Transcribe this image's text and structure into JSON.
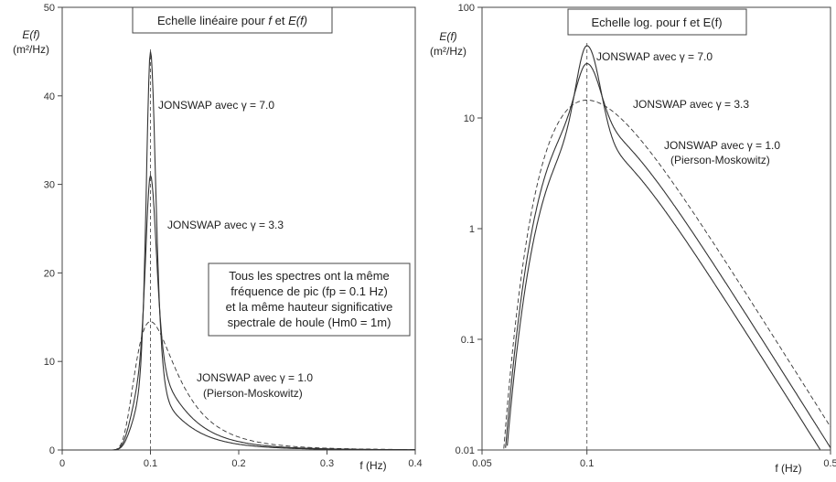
{
  "chart_data": [
    {
      "type": "line",
      "title": "Echelle linéaire pour f et E(f)",
      "title_parts": {
        "a": "Echelle linéaire pour ",
        "f": "f",
        "b": " et ",
        "E": "E(f)"
      },
      "xlabel": "f (Hz)",
      "ylabel": "E(f)",
      "ylabel_unit": "(m²/Hz)",
      "xlim": [
        0,
        0.4
      ],
      "ylim": [
        0,
        50
      ],
      "xscale": "linear",
      "yscale": "linear",
      "x_ticks": [
        "0",
        "0.1",
        "0.2",
        "0.3",
        "0.4"
      ],
      "y_ticks": [
        "0",
        "10",
        "20",
        "30",
        "40",
        "50"
      ],
      "peak_frequency": 0.1,
      "series": [
        {
          "name": "JONSWAP avec γ = 7.0",
          "gamma": 7.0,
          "peak": 45.0,
          "style": "solid"
        },
        {
          "name": "JONSWAP avec γ = 3.3",
          "gamma": 3.3,
          "peak": 31.0,
          "style": "solid"
        },
        {
          "name": "JONSWAP avec γ = 1.0 (Pierson-Moskowitz)",
          "gamma": 1.0,
          "peak": 14.5,
          "style": "dashed"
        }
      ],
      "annotations": {
        "g7": "JONSWAP avec γ = 7.0",
        "g33": "JONSWAP avec γ = 3.3",
        "g1": "JONSWAP avec γ = 1.0",
        "pm": "(Pierson-Moskowitz)",
        "note_lines": [
          "Tous les spectres ont la même",
          "fréquence de pic (fp = 0.1 Hz)",
          "et la même hauteur significative",
          "spectrale de houle (Hm0 = 1m)"
        ]
      }
    },
    {
      "type": "line",
      "title": "Echelle log. pour f et E(f)",
      "xlabel": "f (Hz)",
      "ylabel": "E(f)",
      "ylabel_unit": "(m²/Hz)",
      "xlim": [
        0.05,
        0.5
      ],
      "ylim": [
        0.01,
        100
      ],
      "xscale": "log",
      "yscale": "log",
      "x_ticks": [
        "0.05",
        "0.1",
        "0.5"
      ],
      "y_ticks": [
        "0.01",
        "0.1",
        "1",
        "10",
        "100"
      ],
      "peak_frequency": 0.1,
      "series": [
        {
          "name": "JONSWAP avec γ = 7.0",
          "gamma": 7.0,
          "peak": 45.0,
          "style": "solid"
        },
        {
          "name": "JONSWAP avec γ = 3.3",
          "gamma": 3.3,
          "peak": 31.0,
          "style": "solid"
        },
        {
          "name": "JONSWAP avec γ = 1.0 (Pierson-Moskowitz)",
          "gamma": 1.0,
          "peak": 14.5,
          "style": "dashed"
        }
      ],
      "annotations": {
        "g7": "JONSWAP avec γ = 7.0",
        "g33": "JONSWAP avec γ = 3.3",
        "g1": "JONSWAP avec γ = 1.0",
        "pm": "(Pierson-Moskowitz)"
      }
    }
  ]
}
